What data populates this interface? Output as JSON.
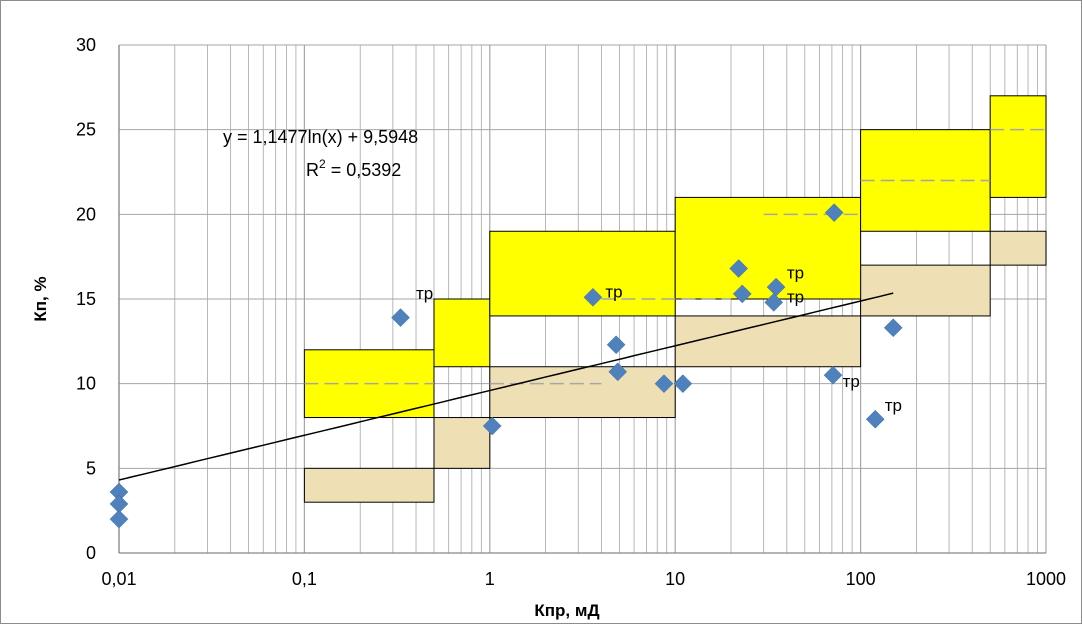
{
  "chart_data": {
    "type": "scatter",
    "title": "",
    "xlabel": "Кпр, мД",
    "ylabel": "Кп, %",
    "x_scale": "log",
    "xlim": [
      0.01,
      1000
    ],
    "ylim": [
      0,
      30
    ],
    "x_ticks": [
      "0,01",
      "0,1",
      "1",
      "10",
      "100",
      "1000"
    ],
    "y_ticks": [
      "0",
      "5",
      "10",
      "15",
      "20",
      "25",
      "30"
    ],
    "grid": true,
    "legend": "none",
    "colors": {
      "marker": "#4f81bd",
      "yellow_box": "#ffff00",
      "tan_box": "#eee0b4",
      "trend": "#000000",
      "grid": "#a6a6a6"
    },
    "series": [
      {
        "marker": "diamond",
        "x": [
          0.01,
          0.01,
          0.01,
          0.33,
          1.03,
          3.6,
          4.8,
          4.9,
          8.7,
          11,
          22,
          23,
          34,
          35,
          71,
          72,
          120,
          150
        ],
        "y": [
          3.6,
          2.9,
          2.0,
          13.9,
          7.5,
          15.1,
          12.3,
          10.7,
          10.0,
          10.0,
          16.8,
          15.3,
          14.8,
          15.7,
          10.5,
          20.1,
          7.9,
          13.3
        ]
      }
    ],
    "trendline": {
      "type": "logarithmic",
      "a": 1.1477,
      "b": 9.5948,
      "x_range": [
        0.01,
        150
      ],
      "equation": "y = 1,1477ln(x) + 9,5948",
      "r2_prefix": "R",
      "r2_sup": "2",
      "r2_value": " = 0,5392"
    },
    "boxes_yellow": [
      {
        "x": [
          0.1,
          0.5
        ],
        "y": [
          8,
          12
        ]
      },
      {
        "x": [
          0.5,
          1
        ],
        "y": [
          11,
          15
        ]
      },
      {
        "x": [
          1,
          10
        ],
        "y": [
          14,
          19
        ]
      },
      {
        "x": [
          10,
          100
        ],
        "y": [
          15,
          21
        ]
      },
      {
        "x": [
          100,
          500
        ],
        "y": [
          19,
          25
        ]
      },
      {
        "x": [
          500,
          1000
        ],
        "y": [
          21,
          27
        ]
      }
    ],
    "boxes_tan": [
      {
        "x": [
          0.1,
          0.5
        ],
        "y": [
          3,
          5
        ]
      },
      {
        "x": [
          0.5,
          1
        ],
        "y": [
          5,
          8
        ]
      },
      {
        "x": [
          1,
          10
        ],
        "y": [
          8,
          11
        ]
      },
      {
        "x": [
          10,
          100
        ],
        "y": [
          11,
          14
        ]
      },
      {
        "x": [
          100,
          500
        ],
        "y": [
          14,
          17
        ]
      },
      {
        "x": [
          500,
          1000
        ],
        "y": [
          17,
          19
        ]
      }
    ],
    "dashed_lines": [
      {
        "x": [
          0.1,
          0.5
        ],
        "y": 10
      },
      {
        "x": [
          1,
          4
        ],
        "y": 10
      },
      {
        "x": [
          4,
          20
        ],
        "y": 15
      },
      {
        "x": [
          30,
          100
        ],
        "y": 20
      },
      {
        "x": [
          100,
          500
        ],
        "y": 22
      },
      {
        "x": [
          500,
          1000
        ],
        "y": 25
      }
    ],
    "annotations": [
      {
        "text": "тр",
        "x": 0.4,
        "y": 15.0
      },
      {
        "text": "тр",
        "x": 4.2,
        "y": 15.1
      },
      {
        "text": "тр",
        "x": 40,
        "y": 16.2
      },
      {
        "text": "тр",
        "x": 40,
        "y": 14.8
      },
      {
        "text": "тр",
        "x": 80,
        "y": 9.8
      },
      {
        "text": "тр",
        "x": 135,
        "y": 8.4
      }
    ]
  }
}
